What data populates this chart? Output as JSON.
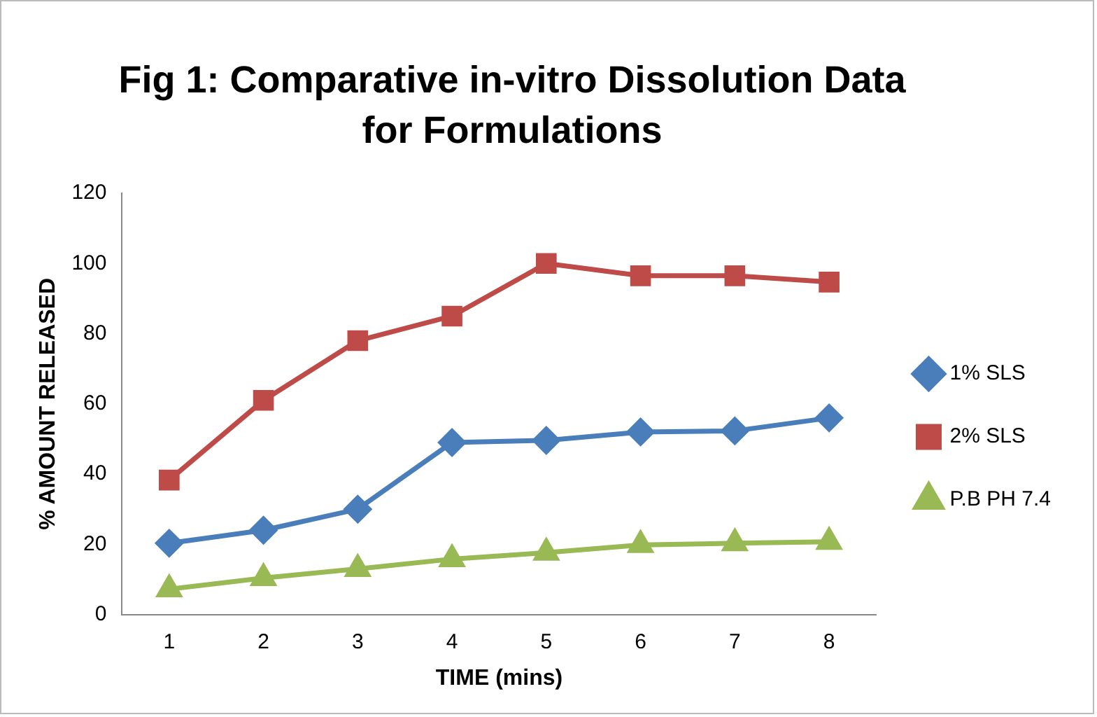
{
  "chart_data": {
    "type": "line",
    "title": "Fig 1: Comparative in-vitro Dissolution Data for Formulations",
    "xlabel": "TIME (mins)",
    "ylabel": "% AMOUNT RELEASED",
    "categories": [
      "1",
      "2",
      "3",
      "4",
      "5",
      "6",
      "7",
      "8"
    ],
    "series": [
      {
        "name": "1% SLS",
        "color": "#4a7ebb",
        "marker": "diamond",
        "values": [
          20.3,
          24,
          30,
          49,
          49.6,
          52,
          52.3,
          56
        ]
      },
      {
        "name": "2% SLS",
        "color": "#be4b48",
        "marker": "square",
        "values": [
          38.3,
          61,
          78,
          85,
          100,
          96.5,
          96.5,
          94.7
        ]
      },
      {
        "name": "P.B PH 7.4",
        "color": "#98b954",
        "marker": "triangle",
        "values": [
          7.2,
          10.4,
          13,
          15.8,
          17.6,
          19.8,
          20.3,
          20.7
        ]
      }
    ],
    "ylim": [
      0,
      120
    ],
    "yticks": [
      0,
      20,
      40,
      60,
      80,
      100,
      120
    ],
    "grid": false,
    "legend": "right"
  }
}
